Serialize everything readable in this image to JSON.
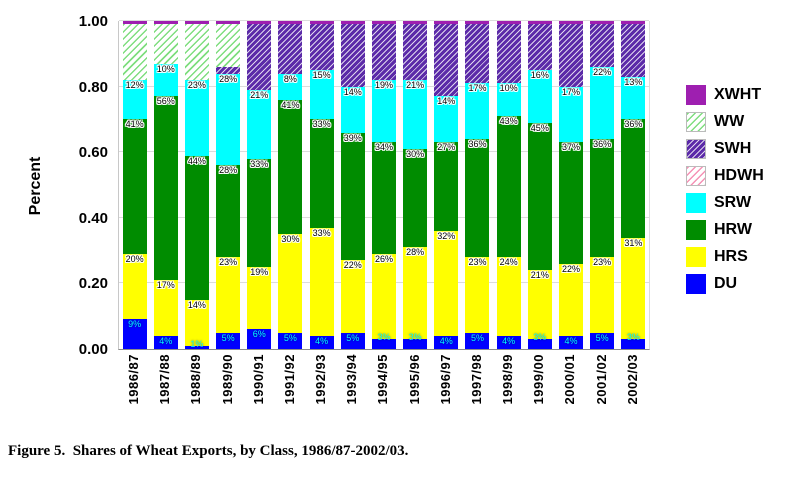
{
  "caption": "Figure 5.  Shares of Wheat Exports, by Class, 1986/87-2002/03.",
  "chart_data": {
    "type": "bar",
    "subtype": "stacked-100-percent",
    "title": "",
    "xlabel": "",
    "ylabel": "Percent",
    "ylim": [
      0,
      1.0
    ],
    "yticks": [
      "1.00",
      "0.80",
      "0.60",
      "0.40",
      "0.20",
      "0.00"
    ],
    "grid": "horizontal",
    "legend_position": "right",
    "categories": [
      "1986/87",
      "1987/88",
      "1988/89",
      "1989/90",
      "1990/91",
      "1991/92",
      "1992/93",
      "1993/94",
      "1994/95",
      "1995/96",
      "1996/97",
      "1997/98",
      "1998/99",
      "1999/00",
      "2000/01",
      "2001/02",
      "2002/03"
    ],
    "series": [
      {
        "name": "DU",
        "color": "#0000ff",
        "show_labels": true,
        "label_color": "#00ffff",
        "values": [
          9,
          4,
          1,
          5,
          6,
          5,
          4,
          5,
          3,
          3,
          4,
          5,
          4,
          3,
          4,
          5,
          3
        ]
      },
      {
        "name": "HRS",
        "color": "#ffff00",
        "show_labels": true,
        "values": [
          20,
          17,
          14,
          23,
          19,
          30,
          33,
          22,
          26,
          28,
          32,
          23,
          24,
          21,
          22,
          23,
          31
        ]
      },
      {
        "name": "HRW",
        "color": "#008c00",
        "show_labels": true,
        "values": [
          41,
          56,
          44,
          28,
          33,
          41,
          33,
          39,
          34,
          30,
          27,
          36,
          43,
          45,
          37,
          36,
          36
        ]
      },
      {
        "name": "SRW",
        "color": "#00ffff",
        "show_labels": true,
        "values": [
          12,
          10,
          23,
          28,
          21,
          8,
          15,
          14,
          19,
          21,
          14,
          17,
          10,
          16,
          17,
          22,
          13
        ]
      },
      {
        "name": "HDWH",
        "pattern": "pat-hdwh",
        "show_labels": false,
        "values": [
          0,
          0,
          0,
          0,
          0,
          0,
          0,
          0,
          0,
          0,
          0,
          0,
          0,
          0,
          0,
          0,
          0
        ]
      },
      {
        "name": "SWH",
        "pattern": "pat-swh",
        "show_labels": false,
        "values": [
          0,
          0,
          0,
          2,
          20,
          15,
          14,
          19,
          17,
          17,
          22,
          18,
          18,
          14,
          19,
          13,
          16
        ]
      },
      {
        "name": "WW",
        "pattern": "pat-ww",
        "show_labels": false,
        "values": [
          17,
          12,
          17,
          13,
          0,
          0,
          0,
          0,
          0,
          0,
          0,
          0,
          0,
          0,
          0,
          0,
          0
        ]
      },
      {
        "name": "XWHT",
        "color": "#9e1fb0",
        "show_labels": false,
        "values": [
          1,
          1,
          1,
          1,
          1,
          1,
          1,
          1,
          1,
          1,
          1,
          1,
          1,
          1,
          1,
          1,
          1
        ]
      }
    ],
    "legend": [
      {
        "label": "XWHT",
        "swatch": "solid",
        "color": "#9e1fb0"
      },
      {
        "label": "WW",
        "swatch": "pat-ww"
      },
      {
        "label": "SWH",
        "swatch": "pat-swh"
      },
      {
        "label": "HDWH",
        "swatch": "pat-hdwh"
      },
      {
        "label": "SRW",
        "swatch": "solid",
        "color": "#00ffff"
      },
      {
        "label": "HRW",
        "swatch": "solid",
        "color": "#008c00"
      },
      {
        "label": "HRS",
        "swatch": "solid",
        "color": "#ffff00"
      },
      {
        "label": "DU",
        "swatch": "solid",
        "color": "#0000ff"
      }
    ],
    "colors": {
      "gridline": "#dcdcdc",
      "baseline": "#8c8c8c"
    }
  }
}
